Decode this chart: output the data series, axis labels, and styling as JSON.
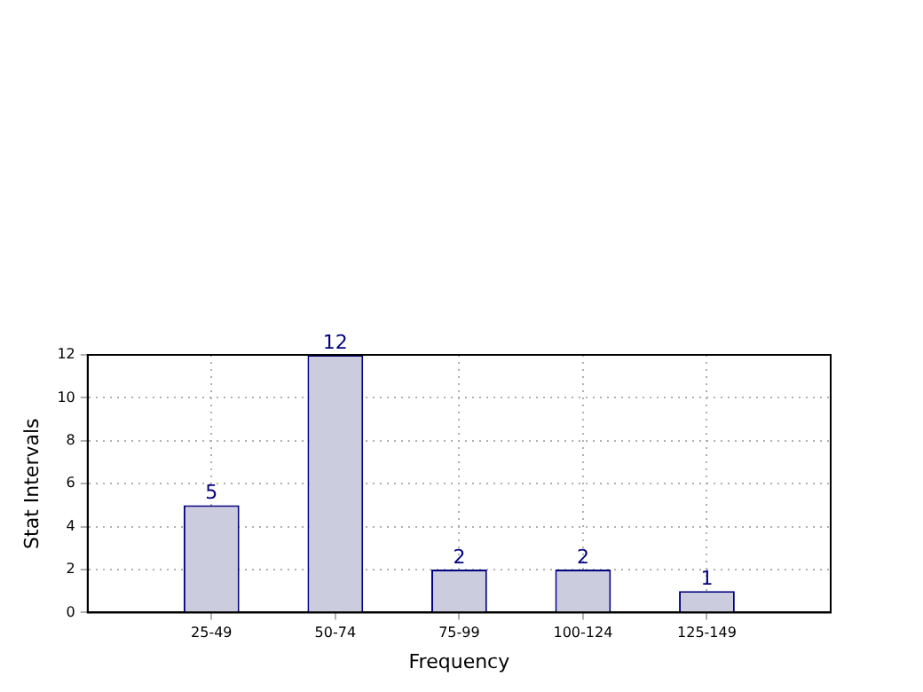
{
  "chart_data": {
    "type": "bar",
    "xlabel": "Frequency",
    "ylabel": "Stat Intervals",
    "categories": [
      null,
      "25-49",
      "50-74",
      "75-99",
      "100-124",
      "125-149",
      null
    ],
    "values": [
      null,
      5,
      12,
      2,
      2,
      1,
      null
    ],
    "color": "#ccccdf",
    "ylim": [
      0,
      12
    ],
    "yticks": [
      0,
      2,
      4,
      6,
      8,
      10,
      12
    ],
    "grid": true,
    "data_labels": true,
    "legend": false
  }
}
